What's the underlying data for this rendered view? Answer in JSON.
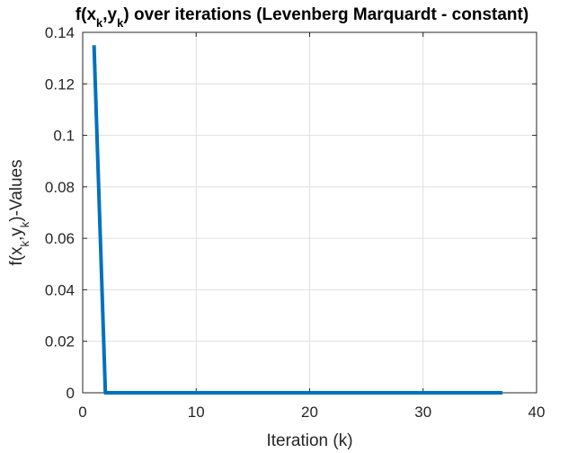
{
  "chart_data": {
    "type": "line",
    "title": {
      "parts": [
        {
          "text": "f(x",
          "sub": false
        },
        {
          "text": "k",
          "sub": true
        },
        {
          "text": ",y",
          "sub": false
        },
        {
          "text": "k",
          "sub": true
        },
        {
          "text": ") over iterations (Levenberg Marquardt - constant)",
          "sub": false
        }
      ]
    },
    "xlabel": "Iteration (k)",
    "ylabel": {
      "parts": [
        {
          "text": "f(x",
          "sub": false
        },
        {
          "text": "k",
          "sub": true
        },
        {
          "text": ",y",
          "sub": false
        },
        {
          "text": "k",
          "sub": true
        },
        {
          "text": ")-Values",
          "sub": false
        }
      ]
    },
    "xlim": [
      0,
      40
    ],
    "ylim": [
      0,
      0.14
    ],
    "xticks": [
      0,
      10,
      20,
      30,
      40
    ],
    "yticks": [
      0,
      0.02,
      0.04,
      0.06,
      0.08,
      0.1,
      0.12,
      0.14
    ],
    "xtick_labels": [
      "0",
      "10",
      "20",
      "30",
      "40"
    ],
    "ytick_labels": [
      "0",
      "0.02",
      "0.04",
      "0.06",
      "0.08",
      "0.1",
      "0.12",
      "0.14"
    ],
    "grid": true,
    "series": [
      {
        "color": "#0072BD",
        "x": [
          1,
          2,
          3,
          4,
          5,
          6,
          7,
          8,
          9,
          10,
          11,
          12,
          13,
          14,
          15,
          16,
          17,
          18,
          19,
          20,
          21,
          22,
          23,
          24,
          25,
          26,
          27,
          28,
          29,
          30,
          31,
          32,
          33,
          34,
          35,
          36,
          37
        ],
        "y": [
          0.135,
          0,
          0,
          0,
          0,
          0,
          0,
          0,
          0,
          0,
          0,
          0,
          0,
          0,
          0,
          0,
          0,
          0,
          0,
          0,
          0,
          0,
          0,
          0,
          0,
          0,
          0,
          0,
          0,
          0,
          0,
          0,
          0,
          0,
          0,
          0,
          0
        ]
      }
    ]
  }
}
